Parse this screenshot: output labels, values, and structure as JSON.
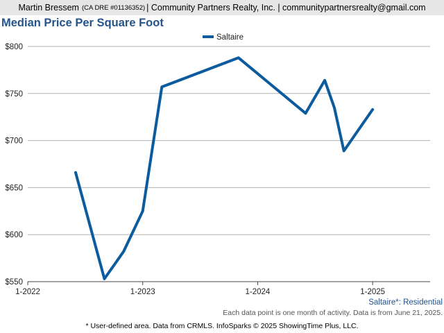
{
  "header": {
    "agent_name": "Martin Bressem",
    "license": "(CA DRE #01136352)",
    "company": "| Community Partners Realty, Inc. | communitypartnersrealty@gmail.com"
  },
  "chart_data": {
    "type": "line",
    "title": "Median Price Per Square Foot",
    "ylim": [
      550,
      800
    ],
    "yticks": [
      550,
      600,
      650,
      700,
      750,
      800
    ],
    "ytick_labels": [
      "$550",
      "$600",
      "$650",
      "$700",
      "$750",
      "$800"
    ],
    "xticks": [
      "2022-01",
      "2023-01",
      "2024-01",
      "2025-01"
    ],
    "xtick_labels": [
      "1-2022",
      "1-2023",
      "1-2024",
      "1-2025"
    ],
    "xlim": [
      "2022-01",
      "2025-07"
    ],
    "grid": true,
    "legend_position": "top-center",
    "series": [
      {
        "name": "Saltaire",
        "color": "#0b5b9e",
        "points": [
          {
            "x": "2022-06",
            "y": 666
          },
          {
            "x": "2022-09",
            "y": 553
          },
          {
            "x": "2022-11",
            "y": 582
          },
          {
            "x": "2023-01",
            "y": 625
          },
          {
            "x": "2023-03",
            "y": 757
          },
          {
            "x": "2023-11",
            "y": 788
          },
          {
            "x": "2024-06",
            "y": 729
          },
          {
            "x": "2024-08",
            "y": 764
          },
          {
            "x": "2024-09",
            "y": 735
          },
          {
            "x": "2024-10",
            "y": 689
          },
          {
            "x": "2025-01",
            "y": 733
          }
        ]
      }
    ],
    "area_note": "Saltaire*: Residential"
  },
  "footer": {
    "activity_note": "Each data point is one month of activity. Data is from June 21, 2025.",
    "source_note": "* User-defined area. Data from CRMLS. InfoSparks © 2025 ShowingTime Plus, LLC."
  }
}
